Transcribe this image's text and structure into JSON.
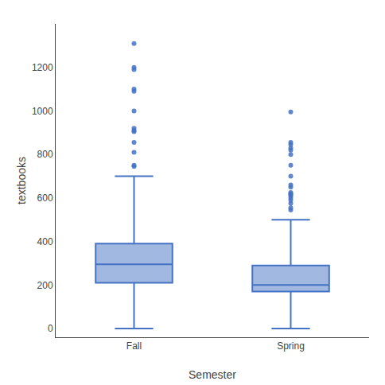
{
  "chart_data": {
    "type": "box",
    "xlabel": "Semester",
    "ylabel": "textbooks",
    "categories": [
      "Fall",
      "Spring"
    ],
    "stats": [
      {
        "q1": 210,
        "median": 295,
        "q3": 390,
        "lower_whisker": 0,
        "upper_whisker": 700,
        "outliers": [
          745,
          750,
          810,
          855,
          905,
          910,
          920,
          1000,
          1090,
          1100,
          1190,
          1200,
          1310
        ]
      },
      {
        "q1": 170,
        "median": 200,
        "q3": 290,
        "lower_whisker": 0,
        "upper_whisker": 500,
        "outliers": [
          545,
          555,
          575,
          590,
          600,
          610,
          615,
          620,
          625,
          650,
          660,
          700,
          750,
          800,
          820,
          830,
          845,
          855,
          995
        ]
      }
    ],
    "color": "#4472C4",
    "ylim": [
      -40,
      1400
    ],
    "yticks": [
      0,
      200,
      400,
      600,
      800,
      1000,
      1200
    ],
    "grid": false
  }
}
